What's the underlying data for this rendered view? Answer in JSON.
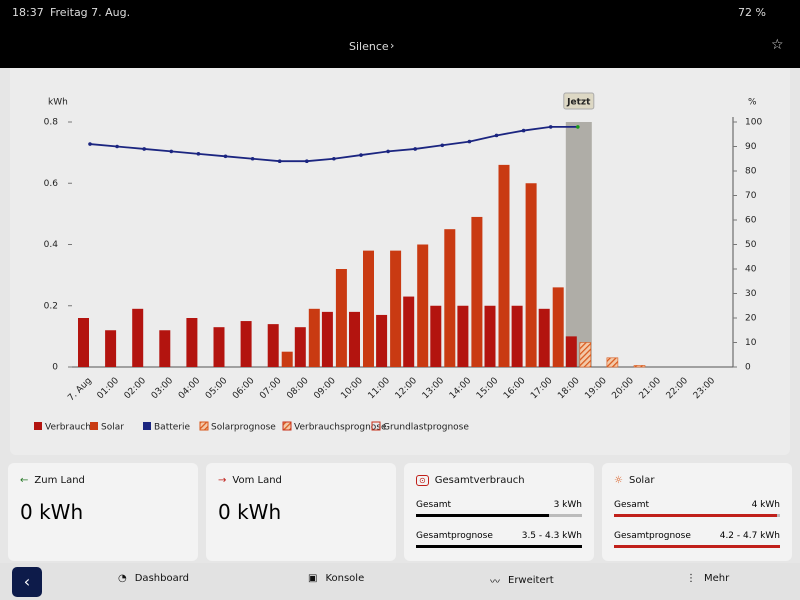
{
  "status": {
    "time": "18:37",
    "date": "Freitag 7. Aug.",
    "battery": "72 %"
  },
  "nav": {
    "title": "Silence"
  },
  "chart_data": {
    "type": "bar",
    "ylabel": "kWh",
    "y2label": "%",
    "categories": [
      "7. Aug",
      "01:00",
      "02:00",
      "03:00",
      "04:00",
      "05:00",
      "06:00",
      "07:00",
      "08:00",
      "09:00",
      "10:00",
      "11:00",
      "12:00",
      "13:00",
      "14:00",
      "15:00",
      "16:00",
      "17:00",
      "18:00",
      "19:00",
      "20:00",
      "21:00",
      "22:00",
      "23:00"
    ],
    "series": [
      {
        "name": "Verbrauch",
        "color": "#b3140f",
        "values": [
          0.16,
          0.12,
          0.19,
          0.12,
          0.16,
          0.13,
          0.15,
          0.14,
          0.13,
          0.18,
          0.18,
          0.17,
          0.23,
          0.2,
          0.2,
          0.2,
          0.2,
          0.19,
          0.1,
          null,
          null,
          null,
          null,
          null
        ]
      },
      {
        "name": "Solar",
        "color": "#c93a12",
        "values": [
          null,
          null,
          null,
          null,
          null,
          null,
          null,
          0.05,
          0.19,
          0.32,
          0.38,
          0.38,
          0.4,
          0.45,
          0.49,
          0.66,
          0.6,
          0.26,
          null,
          null,
          null,
          null,
          null,
          null
        ]
      },
      {
        "name": "Batterie",
        "color": "#1b2580",
        "type": "line",
        "axis": "y2",
        "values": [
          91,
          90,
          89,
          88,
          87,
          86,
          85,
          84,
          84,
          85,
          86.5,
          88,
          89,
          90.5,
          92,
          94.5,
          96.5,
          98,
          98,
          null,
          null,
          null,
          null,
          null
        ]
      },
      {
        "name": "Solarprognose",
        "color": "#d9591c",
        "hatch": true,
        "values": [
          null,
          null,
          null,
          null,
          null,
          null,
          null,
          null,
          null,
          null,
          null,
          null,
          null,
          null,
          null,
          null,
          null,
          null,
          0.08,
          0.03,
          0.005,
          null,
          null,
          null
        ]
      },
      {
        "name": "Verbrauchsprognose",
        "color": "#c9301a",
        "hatch": true,
        "values": [
          null,
          null,
          null,
          null,
          null,
          null,
          null,
          null,
          null,
          null,
          null,
          null,
          null,
          null,
          null,
          null,
          null,
          null,
          null,
          null,
          null,
          null,
          null,
          null
        ]
      },
      {
        "name": "Grundlastprognose",
        "color": "#c9301a",
        "outline": true,
        "values": [
          null,
          null,
          null,
          null,
          null,
          null,
          null,
          null,
          null,
          null,
          null,
          null,
          null,
          null,
          null,
          null,
          null,
          null,
          null,
          null,
          null,
          null,
          null,
          null
        ]
      }
    ],
    "ylim": [
      0,
      0.8
    ],
    "yticks": [
      0,
      0.2,
      0.4,
      0.6,
      0.8
    ],
    "y2lim": [
      0,
      100
    ],
    "y2ticks": [
      0,
      10,
      20,
      30,
      40,
      50,
      60,
      70,
      80,
      90,
      100
    ],
    "annotation": {
      "text": "Jetzt",
      "x": "18:00"
    }
  },
  "cards": [
    {
      "title": "Zum Land",
      "value": "0 kWh"
    },
    {
      "title": "Vom Land",
      "value": "0 kWh"
    },
    {
      "title": "Gesamtverbrauch",
      "rows": [
        {
          "label": "Gesamt",
          "value": "3 kWh"
        },
        {
          "label": "Gesamtprognose",
          "value": "3.5 - 4.3 kWh"
        }
      ]
    },
    {
      "title": "Solar",
      "rows": [
        {
          "label": "Gesamt",
          "value": "4 kWh"
        },
        {
          "label": "Gesamtprognose",
          "value": "4.2 - 4.7 kWh"
        }
      ]
    }
  ],
  "tabs": [
    "Dashboard",
    "Konsole",
    "Erweitert",
    "Mehr"
  ]
}
